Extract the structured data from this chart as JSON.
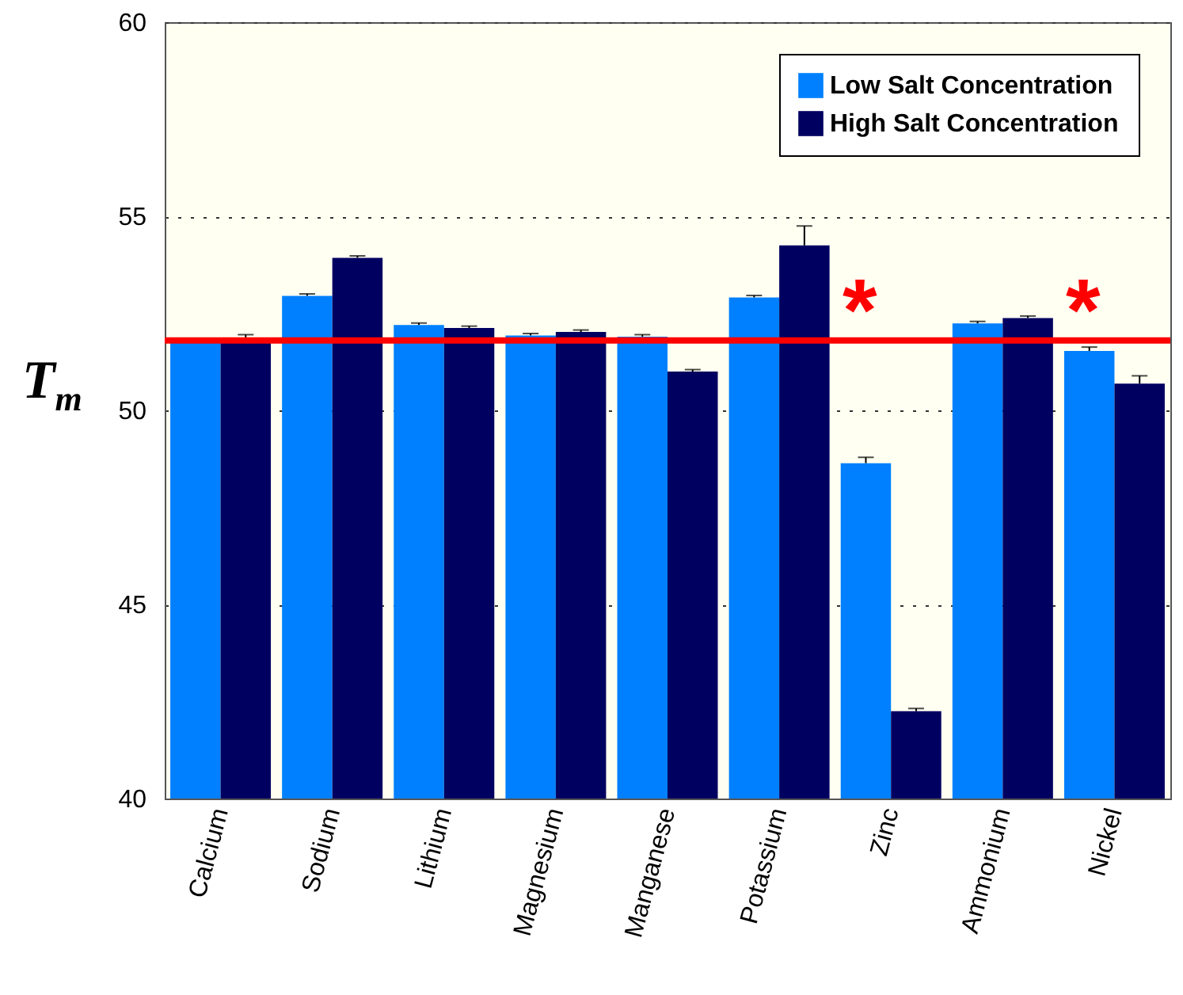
{
  "chart_data": {
    "type": "bar",
    "ylabel": "T$_{m}$",
    "categories": [
      "Calcium",
      "Sodium",
      "Lithium",
      "Magnesium",
      "Manganese",
      "Potassium",
      "Zinc",
      "Ammonium",
      "Nickel"
    ],
    "series": [
      {
        "name": "Low Salt Concentration",
        "color": "#0080ff",
        "values": [
          51.8,
          52.95,
          52.2,
          51.93,
          51.9,
          52.91,
          48.64,
          52.24,
          51.53
        ],
        "errors": [
          0.05,
          0.05,
          0.05,
          0.05,
          0.05,
          0.05,
          0.15,
          0.05,
          0.1
        ]
      },
      {
        "name": "High Salt Concentration",
        "color": "#000060",
        "values": [
          51.8,
          53.93,
          52.12,
          52.02,
          51.0,
          54.25,
          42.25,
          52.38,
          50.69
        ],
        "errors": [
          0.15,
          0.05,
          0.05,
          0.05,
          0.05,
          0.5,
          0.07,
          0.05,
          0.2
        ]
      }
    ],
    "ylim": [
      40,
      60
    ],
    "yticks": [
      40,
      45,
      50,
      55,
      60
    ],
    "grid": "y",
    "legend": "top right",
    "ref_lines": [
      {
        "axis": "y",
        "value": 51.8,
        "color": "#ff0000"
      }
    ],
    "annotations": [
      "*",
      "*"
    ]
  }
}
